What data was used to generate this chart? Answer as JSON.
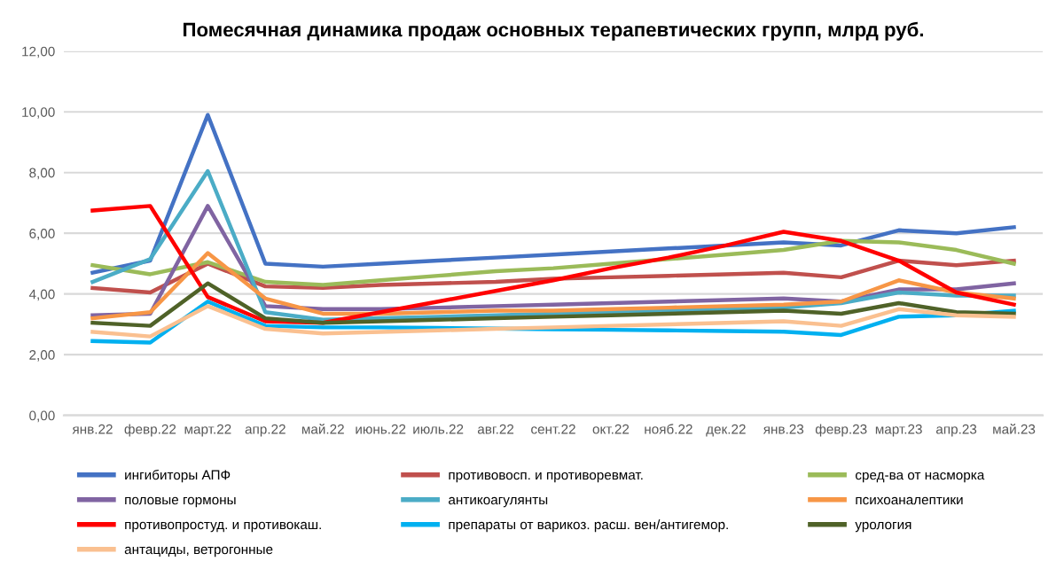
{
  "chart_data": {
    "type": "line",
    "title": "Помесячная динамика продаж основных терапевтических групп, млрд руб.",
    "categories": [
      "янв.22",
      "февр.22",
      "март.22",
      "апр.22",
      "май.22",
      "июнь.22",
      "июль.22",
      "авг.22",
      "сент.22",
      "окт.22",
      "нояб.22",
      "дек.22",
      "янв.23",
      "февр.23",
      "март.23",
      "апр.23",
      "май.23"
    ],
    "series": [
      {
        "name": "ингибиторы АПФ",
        "color": "#4472c4",
        "values": [
          4.7,
          5.1,
          9.9,
          5.0,
          4.9,
          5.0,
          5.1,
          5.2,
          5.3,
          5.4,
          5.5,
          5.6,
          5.7,
          5.6,
          6.1,
          6.0,
          6.2
        ]
      },
      {
        "name": "противовосп. и противоревмат.",
        "color": "#c0504d",
        "values": [
          4.2,
          4.05,
          5.0,
          4.25,
          4.2,
          4.3,
          4.35,
          4.4,
          4.5,
          4.55,
          4.6,
          4.65,
          4.7,
          4.55,
          5.1,
          4.95,
          5.1
        ]
      },
      {
        "name": "сред-ва от насморка",
        "color": "#9bbb59",
        "values": [
          4.95,
          4.65,
          5.05,
          4.4,
          4.3,
          4.45,
          4.6,
          4.75,
          4.85,
          5.0,
          5.15,
          5.3,
          5.45,
          5.75,
          5.7,
          5.45,
          5.0
        ]
      },
      {
        "name": "половые гормоны",
        "color": "#8064a2",
        "values": [
          3.3,
          3.35,
          6.9,
          3.6,
          3.5,
          3.5,
          3.55,
          3.6,
          3.65,
          3.7,
          3.75,
          3.8,
          3.85,
          3.75,
          4.15,
          4.15,
          4.35
        ]
      },
      {
        "name": "антикоагулянты",
        "color": "#4bacc6",
        "values": [
          4.4,
          5.15,
          8.05,
          3.4,
          3.15,
          3.2,
          3.25,
          3.3,
          3.35,
          3.4,
          3.45,
          3.5,
          3.55,
          3.7,
          4.05,
          3.95,
          3.95
        ]
      },
      {
        "name": "психоаналептики",
        "color": "#f79646",
        "values": [
          3.2,
          3.4,
          5.35,
          3.85,
          3.35,
          3.35,
          3.4,
          3.45,
          3.45,
          3.5,
          3.55,
          3.6,
          3.65,
          3.75,
          4.45,
          4.05,
          3.85
        ]
      },
      {
        "name": "противопростуд. и противокаш.",
        "color": "#ff0000",
        "values": [
          6.75,
          6.9,
          3.9,
          3.1,
          3.05,
          3.4,
          3.75,
          4.1,
          4.45,
          4.85,
          5.2,
          5.6,
          6.05,
          5.75,
          5.1,
          4.05,
          3.65
        ]
      },
      {
        "name": "препараты от варикоз. расш. вен/антигемор.",
        "color": "#00b0f0",
        "values": [
          2.45,
          2.4,
          3.75,
          2.95,
          2.9,
          2.9,
          2.88,
          2.86,
          2.84,
          2.82,
          2.8,
          2.78,
          2.76,
          2.65,
          3.25,
          3.3,
          3.45
        ]
      },
      {
        "name": "урология",
        "color": "#4f6228",
        "values": [
          3.05,
          2.95,
          4.35,
          3.2,
          3.05,
          3.1,
          3.15,
          3.2,
          3.25,
          3.3,
          3.35,
          3.4,
          3.45,
          3.35,
          3.7,
          3.4,
          3.35
        ]
      },
      {
        "name": "антациды, ветрогонные",
        "color": "#fac090",
        "values": [
          2.75,
          2.6,
          3.6,
          2.85,
          2.7,
          2.75,
          2.8,
          2.85,
          2.9,
          2.95,
          3.0,
          3.05,
          3.1,
          2.95,
          3.5,
          3.3,
          3.25
        ]
      }
    ],
    "ylim": [
      0,
      12
    ],
    "yticks": [
      {
        "value": 0,
        "label": "0,00"
      },
      {
        "value": 2,
        "label": "2,00"
      },
      {
        "value": 4,
        "label": "4,00"
      },
      {
        "value": 6,
        "label": "6,00"
      },
      {
        "value": 8,
        "label": "8,00"
      },
      {
        "value": 10,
        "label": "10,00"
      },
      {
        "value": 12,
        "label": "12,00"
      }
    ],
    "grid": "y",
    "legend": "bottom",
    "marker": "none",
    "line_style": "solid"
  }
}
